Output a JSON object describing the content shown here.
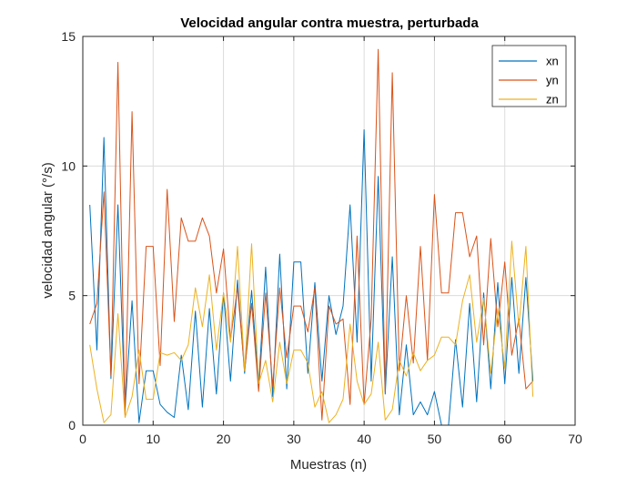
{
  "chart_data": {
    "type": "line",
    "title": "Velocidad angular contra muestra, perturbada",
    "xlabel": "Muestras (n)",
    "ylabel": "velocidad angular (°/s)",
    "xlim": [
      0,
      70
    ],
    "ylim": [
      0,
      15
    ],
    "xticks": [
      "0",
      "10",
      "20",
      "30",
      "40",
      "50",
      "60",
      "70"
    ],
    "yticks": [
      "0",
      "5",
      "10",
      "15"
    ],
    "grid": true,
    "legend_position": "top-right",
    "x": [
      1,
      2,
      3,
      4,
      5,
      6,
      7,
      8,
      9,
      10,
      11,
      12,
      13,
      14,
      15,
      16,
      17,
      18,
      19,
      20,
      21,
      22,
      23,
      24,
      25,
      26,
      27,
      28,
      29,
      30,
      31,
      32,
      33,
      34,
      35,
      36,
      37,
      38,
      39,
      40,
      41,
      42,
      43,
      44,
      45,
      46,
      47,
      48,
      49,
      50,
      51,
      52,
      53,
      54,
      55,
      56,
      57,
      58,
      59,
      60,
      61,
      62,
      63,
      64
    ],
    "series": [
      {
        "name": "xn",
        "color": "#0072BD",
        "values": [
          8.5,
          2.9,
          11.1,
          1.8,
          8.5,
          0.6,
          4.8,
          0.1,
          2.1,
          2.1,
          0.8,
          0.5,
          0.3,
          2.7,
          0.6,
          4.4,
          0.7,
          4.5,
          1.2,
          5.1,
          1.7,
          5.6,
          2.0,
          5.2,
          1.5,
          6.1,
          1.1,
          6.6,
          1.4,
          6.3,
          6.3,
          2.0,
          5.5,
          1.7,
          5.0,
          3.5,
          4.6,
          8.5,
          3.2,
          11.4,
          1.7,
          9.6,
          1.2,
          6.5,
          0.4,
          3.1,
          0.4,
          0.9,
          0.4,
          1.3,
          0.0,
          0.0,
          3.3,
          0.7,
          4.7,
          0.9,
          5.1,
          1.4,
          5.5,
          1.6,
          5.7,
          2.0,
          5.7,
          1.7
        ]
      },
      {
        "name": "yn",
        "color": "#D95319",
        "values": [
          3.9,
          4.7,
          9.0,
          1.9,
          14.0,
          0.4,
          12.1,
          1.6,
          6.9,
          6.9,
          2.3,
          9.1,
          4.0,
          8.0,
          7.1,
          7.1,
          8.0,
          7.3,
          5.1,
          6.8,
          3.3,
          5.3,
          2.1,
          4.7,
          1.3,
          5.1,
          1.5,
          5.3,
          2.6,
          4.6,
          4.6,
          3.6,
          5.3,
          0.2,
          4.6,
          3.9,
          4.1,
          0.8,
          7.3,
          0.8,
          4.1,
          14.5,
          1.3,
          13.6,
          2.1,
          5.0,
          2.4,
          6.9,
          2.5,
          8.9,
          5.1,
          5.1,
          8.2,
          8.2,
          6.5,
          7.3,
          3.1,
          7.2,
          3.8,
          6.3,
          2.7,
          4.1,
          1.4,
          1.7
        ]
      },
      {
        "name": "zn",
        "color": "#EDB120",
        "values": [
          3.1,
          1.4,
          0.1,
          0.4,
          4.3,
          0.3,
          1.1,
          2.9,
          1.0,
          1.0,
          2.8,
          2.7,
          2.8,
          2.5,
          3.1,
          5.3,
          3.8,
          5.8,
          2.9,
          5.1,
          3.2,
          6.9,
          2.1,
          7.0,
          1.6,
          2.5,
          0.9,
          3.2,
          1.6,
          2.9,
          2.9,
          2.4,
          0.7,
          1.3,
          0.1,
          0.4,
          1.0,
          3.9,
          1.7,
          0.8,
          1.2,
          3.2,
          0.2,
          0.6,
          2.5,
          1.9,
          2.8,
          2.1,
          2.5,
          2.7,
          3.4,
          3.4,
          3.1,
          4.8,
          5.8,
          3.2,
          4.9,
          2.0,
          4.5,
          2.2,
          7.1,
          3.8,
          6.9,
          1.1
        ]
      }
    ]
  }
}
